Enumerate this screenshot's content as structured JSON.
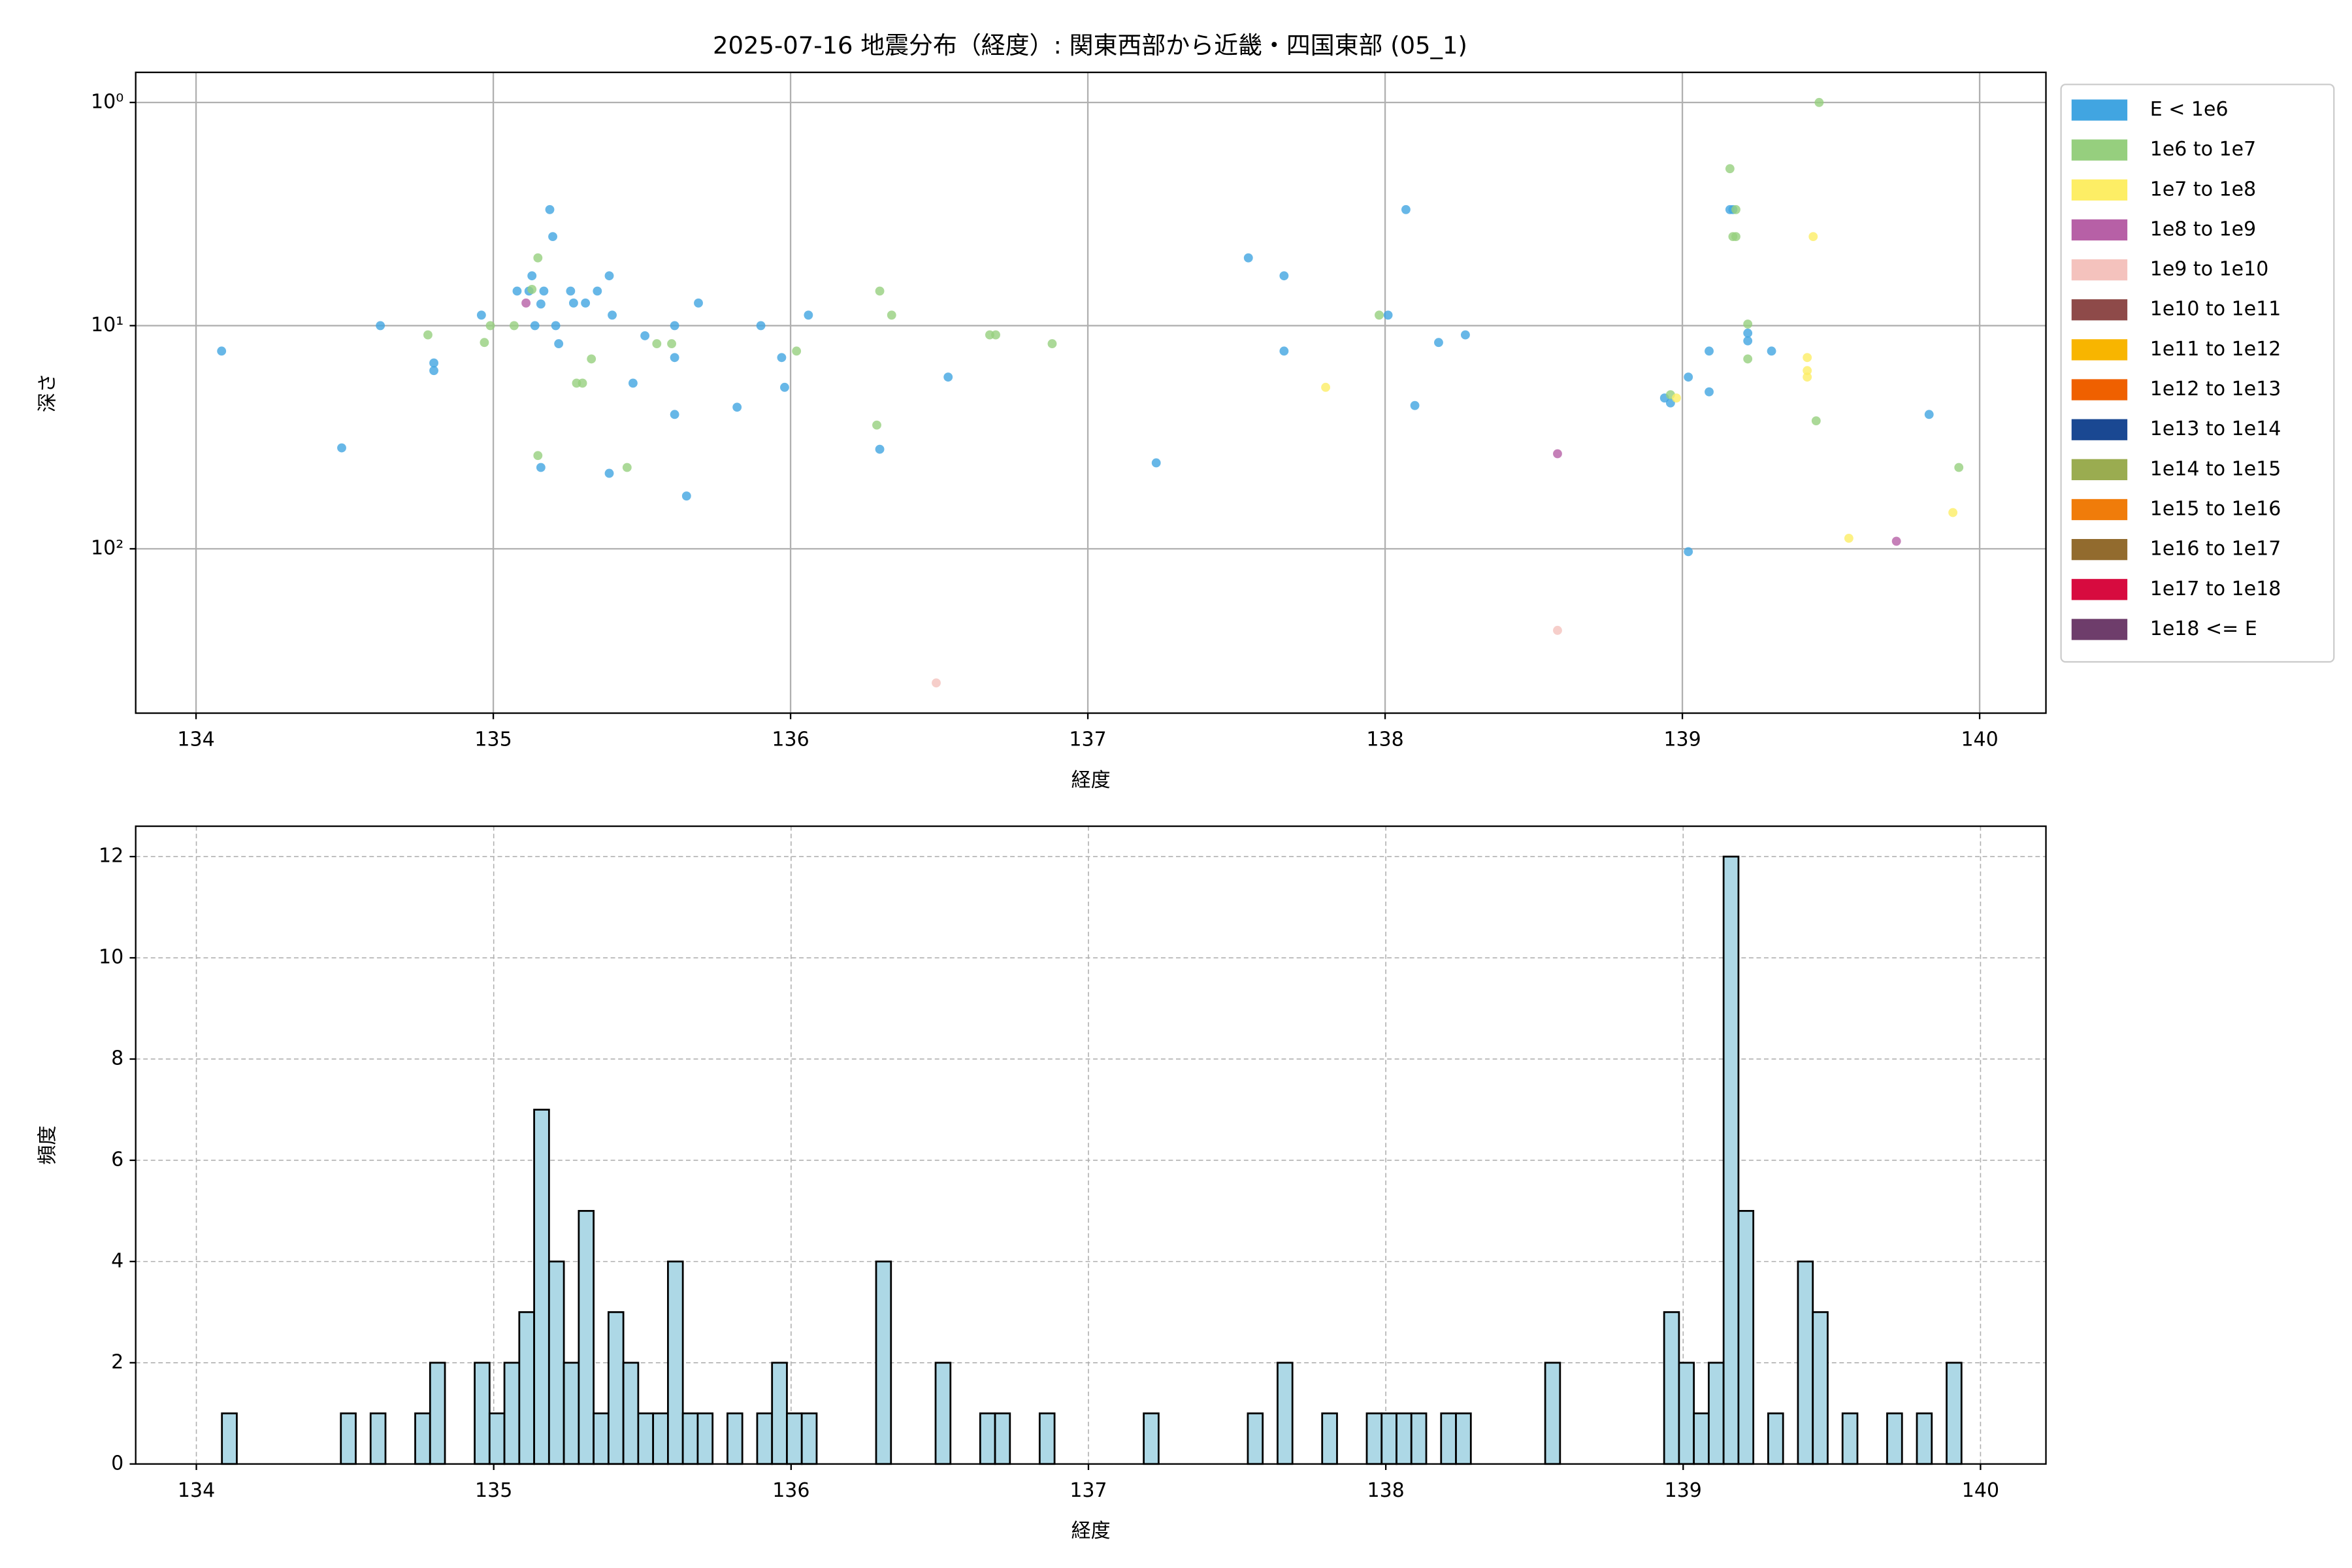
{
  "chart_data": [
    {
      "type": "scatter",
      "title": "2025-07-16 地震分布（経度）: 関東西部から近畿・四国東部 (05_1)",
      "xlabel": "経度",
      "ylabel": "深さ",
      "xlim": [
        133.797,
        140.223
      ],
      "ylim": [
        545,
        0.733
      ],
      "log_y": true,
      "grid": true,
      "legend": "outside upper right",
      "xticks": [
        134,
        135,
        136,
        137,
        138,
        139,
        140
      ],
      "yticks": [
        {
          "value": 1,
          "label": "10⁰"
        },
        {
          "value": 10,
          "label": "10¹"
        },
        {
          "value": 100,
          "label": "10²"
        }
      ],
      "series": [
        {
          "name": "E < 1e6",
          "color": "#41a5e1",
          "x": [
            134.086,
            134.49,
            134.62,
            134.8,
            134.8,
            134.96,
            135.08,
            135.12,
            135.13,
            135.14,
            135.16,
            135.17,
            135.19,
            135.2,
            135.21,
            135.22,
            135.26,
            135.27,
            135.31,
            135.35,
            135.39,
            135.4,
            135.39,
            135.16,
            135.47,
            135.51,
            135.61,
            135.61,
            135.61,
            135.65,
            135.69,
            135.82,
            135.9,
            135.97,
            135.98,
            136.06,
            136.3,
            136.53,
            137.23,
            137.54,
            137.66,
            137.66,
            138.01,
            138.07,
            138.1,
            138.18,
            138.27,
            138.94,
            138.96,
            139.02,
            139.02,
            139.09,
            139.09,
            139.16,
            139.17,
            139.22,
            139.22,
            139.3,
            139.83
          ],
          "values": [
            13.0,
            35.3,
            10,
            14.7,
            15.9,
            8.97,
            7.0,
            7.0,
            5.98,
            10,
            8.0,
            7.0,
            3.02,
            3.99,
            10,
            12.05,
            7.0,
            7.92,
            7.92,
            7.0,
            5.98,
            8.97,
            45.9,
            43.2,
            18.1,
            11.1,
            10,
            13.9,
            25.0,
            58,
            7.92,
            23.2,
            10,
            13.9,
            18.9,
            8.97,
            35.8,
            17.0,
            41.2,
            4.97,
            5.98,
            13.0,
            8.97,
            3.02,
            22.8,
            11.9,
            11.0,
            21.1,
            22.2,
            17.0,
            103,
            13.0,
            19.8,
            3.02,
            3.02,
            10.8,
            11.7,
            13.0,
            25.0
          ]
        },
        {
          "name": "1e6 to 1e7",
          "color": "#96cf7e",
          "x": [
            134.78,
            134.97,
            134.99,
            135.07,
            135.13,
            135.15,
            135.15,
            135.28,
            135.3,
            135.33,
            135.45,
            135.55,
            135.6,
            136.02,
            136.29,
            136.3,
            136.34,
            136.67,
            136.69,
            136.88,
            137.98,
            138.96,
            139.16,
            139.17,
            139.18,
            139.18,
            139.22,
            139.22,
            139.46,
            139.45,
            139.93
          ],
          "values": [
            11.0,
            11.9,
            10,
            10,
            6.88,
            4.97,
            38.2,
            18.1,
            18.1,
            14.1,
            43.2,
            12.05,
            12.05,
            13.0,
            27.9,
            7.0,
            8.97,
            11.0,
            11.0,
            12.05,
            8.97,
            20.4,
            1.98,
            3.99,
            3.02,
            3.99,
            9.84,
            14.1,
            1.0,
            26.7,
            43.2
          ]
        },
        {
          "name": "1e7 to 1e8",
          "color": "#fdee65",
          "x": [
            137.8,
            138.98,
            139.42,
            139.42,
            139.42,
            139.44,
            139.56,
            139.91
          ],
          "values": [
            18.9,
            21.1,
            13.9,
            15.9,
            17.0,
            3.99,
            89.7,
            68.8
          ]
        },
        {
          "name": "1e8 to 1e9",
          "color": "#b760a6",
          "x": [
            135.11,
            138.58,
            139.72
          ],
          "values": [
            7.92,
            37.5,
            92.5
          ]
        },
        {
          "name": "1e9 to 1e10",
          "color": "#f4c2bd",
          "x": [
            136.49,
            138.58
          ],
          "values": [
            399,
            232
          ]
        },
        {
          "name": "1e10 to 1e11",
          "color": "#8e4a49",
          "x": [],
          "values": []
        },
        {
          "name": "1e11 to 1e12",
          "color": "#f8b500",
          "x": [],
          "values": []
        },
        {
          "name": "1e12 to 1e13",
          "color": "#ef6000",
          "x": [],
          "values": []
        },
        {
          "name": "1e13 to 1e14",
          "color": "#1a4892",
          "x": [],
          "values": []
        },
        {
          "name": "1e14 to 1e15",
          "color": "#9aac50",
          "x": [],
          "values": []
        },
        {
          "name": "1e15 to 1e16",
          "color": "#f07c0a",
          "x": [],
          "values": []
        },
        {
          "name": "1e16 to 1e17",
          "color": "#926b2e",
          "x": [],
          "values": []
        },
        {
          "name": "1e17 to 1e18",
          "color": "#d70b3f",
          "x": [],
          "values": []
        },
        {
          "name": "1e18 <= E",
          "color": "#6e3d6b",
          "x": [],
          "values": []
        }
      ]
    },
    {
      "type": "histogram",
      "xlabel": "経度",
      "ylabel": "頻度",
      "xlim": [
        133.796,
        140.22
      ],
      "ylim": [
        0,
        12.6
      ],
      "grid": true,
      "color": "#add8e6",
      "edgecolor": "#000000",
      "xticks": [
        134,
        135,
        136,
        137,
        138,
        139,
        140
      ],
      "yticks": [
        0,
        2,
        4,
        6,
        8,
        10,
        12
      ],
      "bins": [
        134.086,
        134.136,
        134.186,
        134.236,
        134.286,
        134.336,
        134.386,
        134.436,
        134.486,
        134.536,
        134.586,
        134.636,
        134.686,
        134.736,
        134.786,
        134.836,
        134.886,
        134.936,
        134.986,
        135.036,
        135.086,
        135.136,
        135.186,
        135.236,
        135.286,
        135.336,
        135.386,
        135.436,
        135.486,
        135.536,
        135.586,
        135.636,
        135.686,
        135.736,
        135.786,
        135.836,
        135.886,
        135.936,
        135.986,
        136.036,
        136.086,
        136.136,
        136.186,
        136.236,
        136.286,
        136.336,
        136.386,
        136.436,
        136.486,
        136.536,
        136.586,
        136.636,
        136.686,
        136.736,
        136.786,
        136.836,
        136.886,
        136.936,
        136.986,
        137.036,
        137.086,
        137.136,
        137.186,
        137.236,
        137.286,
        137.336,
        137.386,
        137.436,
        137.486,
        137.536,
        137.586,
        137.636,
        137.686,
        137.736,
        137.786,
        137.836,
        137.886,
        137.936,
        137.986,
        138.036,
        138.086,
        138.136,
        138.186,
        138.236,
        138.286,
        138.336,
        138.386,
        138.436,
        138.486,
        138.536,
        138.586,
        138.636,
        138.686,
        138.736,
        138.786,
        138.836,
        138.886,
        138.936,
        138.986,
        139.036,
        139.086,
        139.136,
        139.186,
        139.236,
        139.286,
        139.336,
        139.386,
        139.436,
        139.486,
        139.536,
        139.586,
        139.636,
        139.686,
        139.736,
        139.786,
        139.836,
        139.886,
        139.936
      ],
      "values": [
        1,
        0,
        0,
        0,
        0,
        0,
        0,
        0,
        1,
        0,
        1,
        0,
        0,
        1,
        2,
        0,
        0,
        2,
        1,
        2,
        3,
        7,
        4,
        2,
        5,
        1,
        3,
        2,
        1,
        1,
        4,
        1,
        1,
        0,
        1,
        0,
        1,
        2,
        1,
        1,
        0,
        0,
        0,
        0,
        4,
        0,
        0,
        0,
        2,
        0,
        0,
        1,
        1,
        0,
        0,
        1,
        0,
        0,
        0,
        0,
        0,
        0,
        1,
        0,
        0,
        0,
        0,
        0,
        0,
        1,
        0,
        2,
        0,
        0,
        1,
        0,
        0,
        1,
        1,
        1,
        1,
        0,
        1,
        1,
        0,
        0,
        0,
        0,
        0,
        2,
        0,
        0,
        0,
        0,
        0,
        0,
        0,
        3,
        2,
        1,
        2,
        12,
        5,
        0,
        1,
        0,
        4,
        3,
        0,
        1,
        0,
        0,
        1,
        0,
        1,
        0,
        2
      ]
    }
  ]
}
